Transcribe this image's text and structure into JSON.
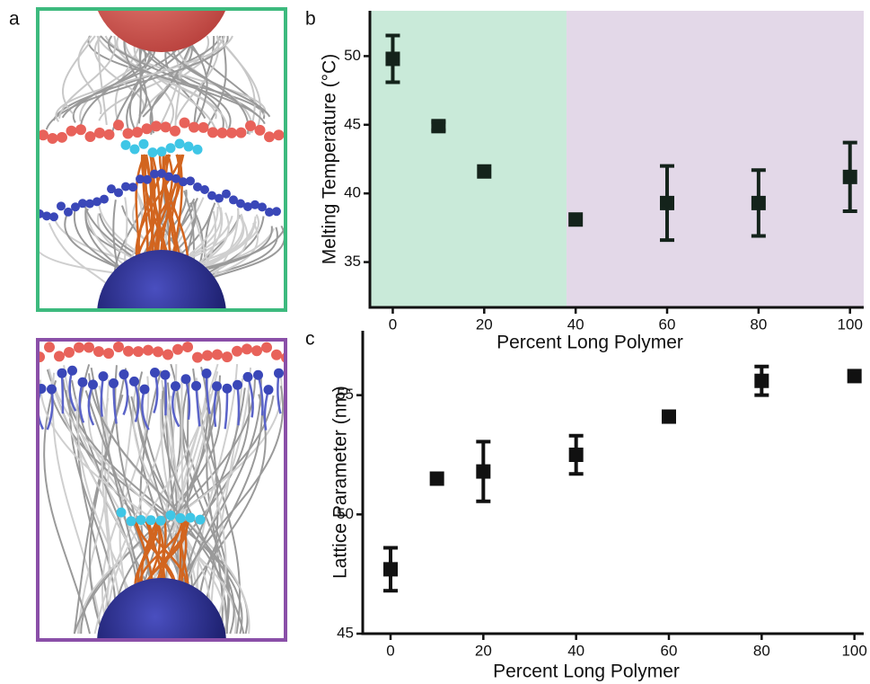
{
  "panel_a": {
    "label": "a"
  },
  "chart_data": [
    {
      "type": "scatter",
      "label": "b",
      "xlabel": "Percent Long Polymer",
      "ylabel": "Melting Temperature (°C)",
      "x": [
        0,
        10,
        20,
        40,
        60,
        80,
        100
      ],
      "series": [
        {
          "color": "#14231b",
          "values": [
            49.8,
            44.9,
            41.6,
            38.1,
            39.3,
            39.3,
            41.2
          ],
          "errors": [
            1.7,
            0.3,
            null,
            null,
            2.7,
            2.4,
            2.5
          ]
        }
      ],
      "xlim": [
        -5,
        103
      ],
      "ylim": [
        31.7,
        53.3
      ],
      "xticks": [
        0,
        20,
        40,
        60,
        80,
        100
      ],
      "yticks": [
        35,
        40,
        45,
        50
      ],
      "regions": [
        {
          "from": -5,
          "to": 38,
          "color": "#c9ead9"
        },
        {
          "from": 38,
          "to": 103,
          "color": "#e3d8e8"
        }
      ]
    },
    {
      "type": "scatter",
      "label": "c",
      "xlabel": "Percent Long Polymer",
      "ylabel": "Lattice Parameter (nm)",
      "x": [
        0,
        10,
        20,
        40,
        60,
        80,
        100
      ],
      "series": [
        {
          "color": "#111111",
          "values": [
            47.7,
            51.5,
            51.8,
            52.5,
            54.1,
            55.6,
            55.8
          ],
          "errors": [
            0.9,
            null,
            1.25,
            0.8,
            null,
            0.6,
            null
          ]
        }
      ],
      "xlim": [
        -6,
        102
      ],
      "ylim": [
        45,
        57.7
      ],
      "xticks": [
        0,
        20,
        40,
        60,
        80,
        100
      ],
      "yticks": [
        45,
        50,
        55
      ]
    }
  ]
}
